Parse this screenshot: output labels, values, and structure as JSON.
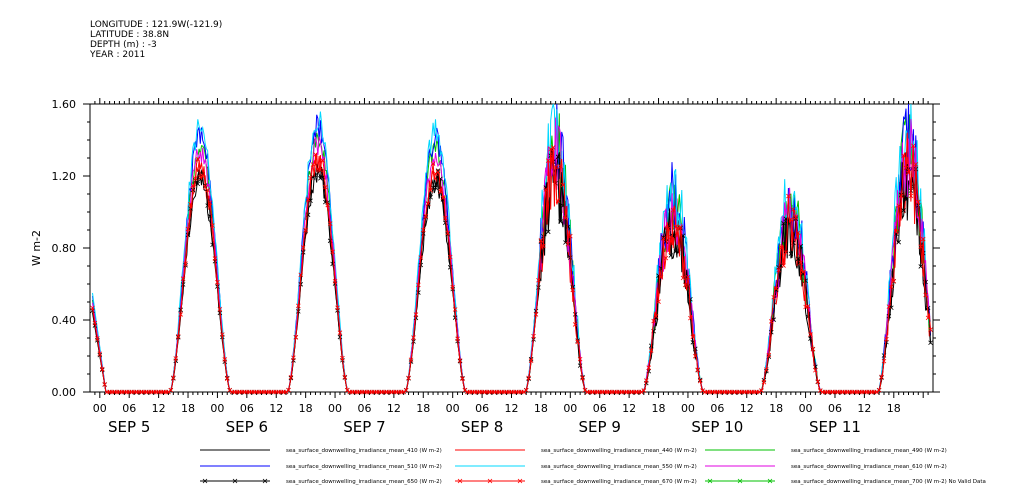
{
  "header": {
    "lines": [
      "LONGITUDE : 121.9W(-121.9)",
      "LATITUDE : 38.8N",
      "DEPTH (m) : -3",
      "YEAR : 2011"
    ]
  },
  "chart_data": {
    "type": "line",
    "ylabel": "W m-2",
    "ylim": [
      0,
      1.6
    ],
    "yticks": [
      "0.00",
      "0.40",
      "0.80",
      "1.20",
      "1.60"
    ],
    "x_hour_ticks": [
      "00",
      "06",
      "12",
      "18",
      "00",
      "06",
      "12",
      "18",
      "00",
      "06",
      "12",
      "18",
      "00",
      "06",
      "12",
      "18",
      "00",
      "06",
      "12",
      "18",
      "00",
      "06",
      "12",
      "18",
      "00",
      "06",
      "12",
      "18"
    ],
    "x_date_labels": [
      "SEP   5",
      "SEP   6",
      "SEP   7",
      "SEP   8",
      "SEP   9",
      "SEP 10",
      "SEP 11"
    ],
    "x_range_hours": [
      -2,
      160
    ],
    "day_peaks": [
      {
        "day": "SEP 5",
        "peak_hour": 20.5,
        "peak": 1.47
      },
      {
        "day": "SEP 6",
        "peak_hour": 44.5,
        "peak": 1.52
      },
      {
        "day": "SEP 7",
        "peak_hour": 68.5,
        "peak": 1.45
      },
      {
        "day": "SEP 8",
        "peak_hour": 93.0,
        "peak": 1.46
      },
      {
        "day": "SEP 9",
        "peak_hour": 117.0,
        "peak": 1.12
      },
      {
        "day": "SEP 10",
        "peak_hour": 141.0,
        "peak": 1.1
      },
      {
        "day": "SEP 11",
        "peak_hour": 165.0,
        "peak": 1.45
      }
    ],
    "series": [
      {
        "name": "sea_surface_downwelling_irradiance_mean_410 (W m-2)",
        "color": "#000000",
        "marker": "",
        "scale": 0.8
      },
      {
        "name": "sea_surface_downwelling_irradiance_mean_440 (W m-2)",
        "color": "#ff0000",
        "marker": "",
        "scale": 0.84
      },
      {
        "name": "sea_surface_downwelling_irradiance_mean_490 (W m-2)",
        "color": "#00c000",
        "marker": "",
        "scale": 0.93
      },
      {
        "name": "sea_surface_downwelling_irradiance_mean_510 (W m-2)",
        "color": "#0000ff",
        "marker": "",
        "scale": 0.97
      },
      {
        "name": "sea_surface_downwelling_irradiance_mean_550 (W m-2)",
        "color": "#00d8ff",
        "marker": "",
        "scale": 1.0
      },
      {
        "name": "sea_surface_downwelling_irradiance_mean_610 (W m-2)",
        "color": "#e000e0",
        "marker": "",
        "scale": 0.9
      },
      {
        "name": "sea_surface_downwelling_irradiance_mean_650 (W m-2)",
        "color": "#000000",
        "marker": "x",
        "scale": 0.82
      },
      {
        "name": "sea_surface_downwelling_irradiance_mean_670 (W m-2)",
        "color": "#ff0000",
        "marker": "x",
        "scale": 0.85
      },
      {
        "name": "sea_surface_downwelling_irradiance_mean_700 (W m-2) No Valid Data",
        "color": "#00c000",
        "marker": "x",
        "scale": 0
      }
    ]
  }
}
